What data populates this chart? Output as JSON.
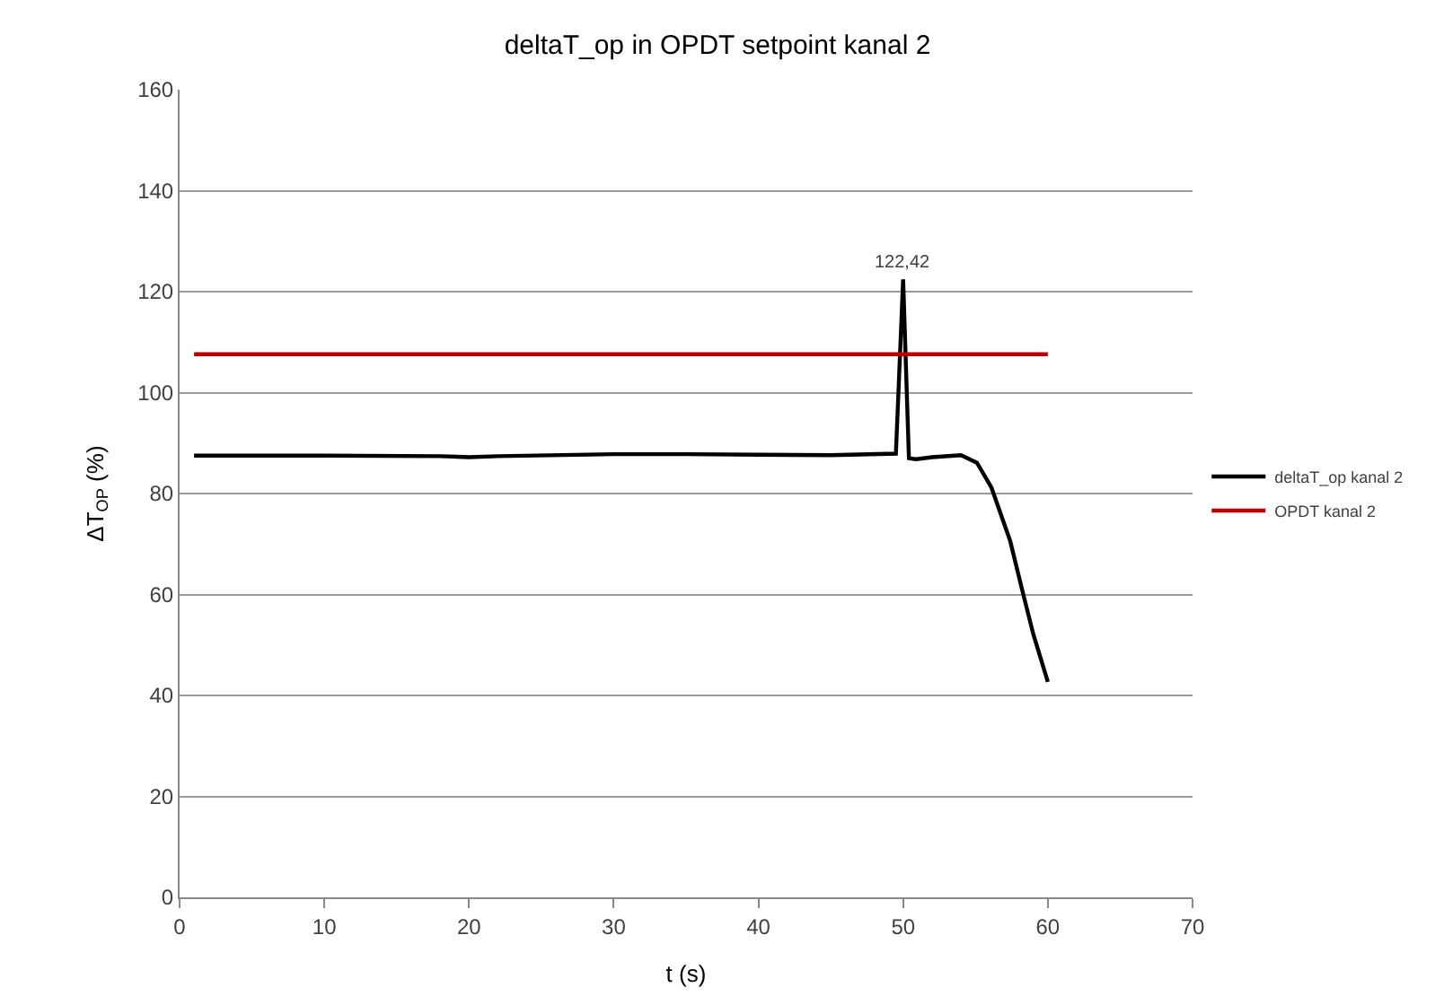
{
  "chart_data": {
    "type": "line",
    "title": "deltaT_op in OPDT setpoint kanal 2",
    "xlabel": "t (s)",
    "ylabel": "ΔT$_{OP}$ (%)",
    "xlim": [
      0,
      70
    ],
    "xticks": [
      0,
      10,
      20,
      30,
      40,
      50,
      60,
      70
    ],
    "ylim": [
      0,
      160
    ],
    "yticks": [
      0,
      20,
      40,
      60,
      80,
      100,
      120,
      140,
      160
    ],
    "grid": "y",
    "legend": "right",
    "marker": "none",
    "line_style": "solid",
    "series": [
      {
        "name": "deltaT_op kanal 2",
        "color": "#000000",
        "x": [
          1,
          10,
          18,
          20,
          22,
          30,
          35,
          40,
          45,
          49.5,
          50,
          50.4,
          50.9,
          52,
          54,
          55.1,
          56.1,
          57.4,
          58.2,
          59,
          60
        ],
        "values": [
          87.5,
          87.5,
          87.4,
          87.2,
          87.4,
          87.8,
          87.8,
          87.7,
          87.6,
          87.9,
          122.42,
          87,
          86.8,
          87.2,
          87.6,
          86.1,
          81.2,
          70.6,
          61.2,
          52.1,
          42.7
        ]
      },
      {
        "name": "OPDT kanal 2",
        "color": "#c00000",
        "x": [
          1,
          60
        ],
        "values": [
          107.6,
          107.6
        ]
      }
    ],
    "annotations": [
      {
        "text": "122,42",
        "x": 50,
        "y": 122.42
      }
    ]
  }
}
